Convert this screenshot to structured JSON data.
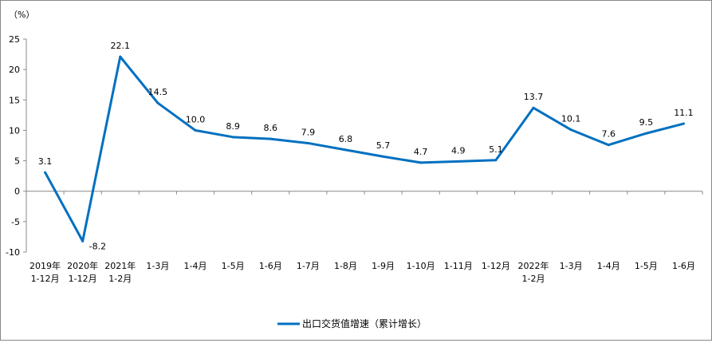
{
  "chart_data": {
    "type": "line",
    "unit_label": "（%）",
    "categories": [
      [
        "2019年",
        "1-12月"
      ],
      [
        "2020年",
        "1-12月"
      ],
      [
        "2021年",
        "1-2月"
      ],
      [
        "1-3月"
      ],
      [
        "1-4月"
      ],
      [
        "1-5月"
      ],
      [
        "1-6月"
      ],
      [
        "1-7月"
      ],
      [
        "1-8月"
      ],
      [
        "1-9月"
      ],
      [
        "1-10月"
      ],
      [
        "1-11月"
      ],
      [
        "1-12月"
      ],
      [
        "2022年",
        "1-2月"
      ],
      [
        "1-3月"
      ],
      [
        "1-4月"
      ],
      [
        "1-5月"
      ],
      [
        "1-6月"
      ]
    ],
    "series": [
      {
        "name": "出口交货值增速（累计增长）",
        "values": [
          3.1,
          -8.2,
          22.1,
          14.5,
          10.0,
          8.9,
          8.6,
          7.9,
          6.8,
          5.7,
          4.7,
          4.9,
          5.1,
          13.7,
          10.1,
          7.6,
          9.5,
          11.1
        ],
        "color": "#0070C0"
      }
    ],
    "data_labels": [
      "3.1",
      "-8.2",
      "22.1",
      "14.5",
      "10.0",
      "8.9",
      "8.6",
      "7.9",
      "6.8",
      "5.7",
      "4.7",
      "4.9",
      "5.1",
      "13.7",
      "10.1",
      "7.6",
      "9.5",
      "11.1"
    ],
    "ylim": [
      -10,
      25
    ],
    "yticks": [
      -10,
      -5,
      0,
      5,
      10,
      15,
      20,
      25
    ],
    "grid": false,
    "legend_position": "bottom"
  }
}
